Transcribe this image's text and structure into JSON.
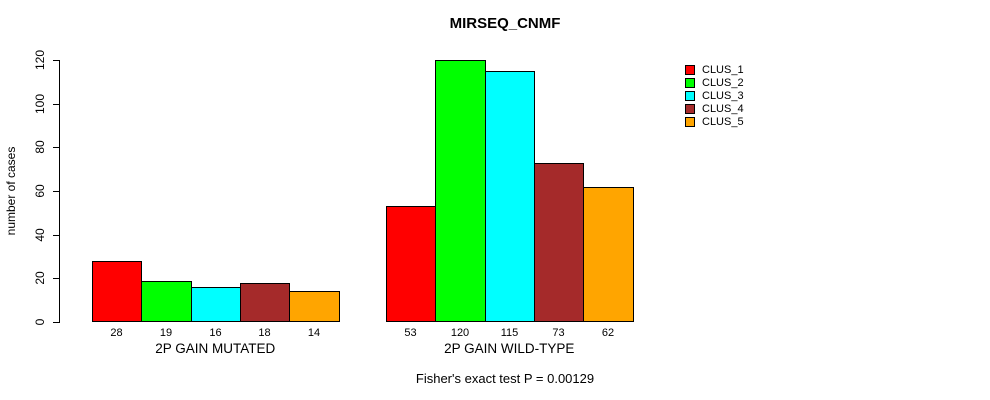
{
  "chart_data": {
    "type": "bar",
    "title": "MIRSEQ_CNMF",
    "ylabel": "number of cases",
    "xlabel": "",
    "ylim": [
      0,
      120
    ],
    "yticks": [
      0,
      20,
      40,
      60,
      80,
      100,
      120
    ],
    "grid": false,
    "legend_position": "right",
    "categories": [
      "2P GAIN MUTATED",
      "2P GAIN WILD-TYPE"
    ],
    "series": [
      {
        "name": "CLUS_1",
        "color": "#FF0000",
        "values": [
          28,
          53
        ]
      },
      {
        "name": "CLUS_2",
        "color": "#00FF00",
        "values": [
          19,
          120
        ]
      },
      {
        "name": "CLUS_3",
        "color": "#00FFFF",
        "values": [
          16,
          115
        ]
      },
      {
        "name": "CLUS_4",
        "color": "#A52A2A",
        "values": [
          18,
          73
        ]
      },
      {
        "name": "CLUS_5",
        "color": "#FFA500",
        "values": [
          14,
          62
        ]
      }
    ],
    "bar_value_labels": true,
    "annotation": "Fisher's exact test P = 0.00129"
  }
}
